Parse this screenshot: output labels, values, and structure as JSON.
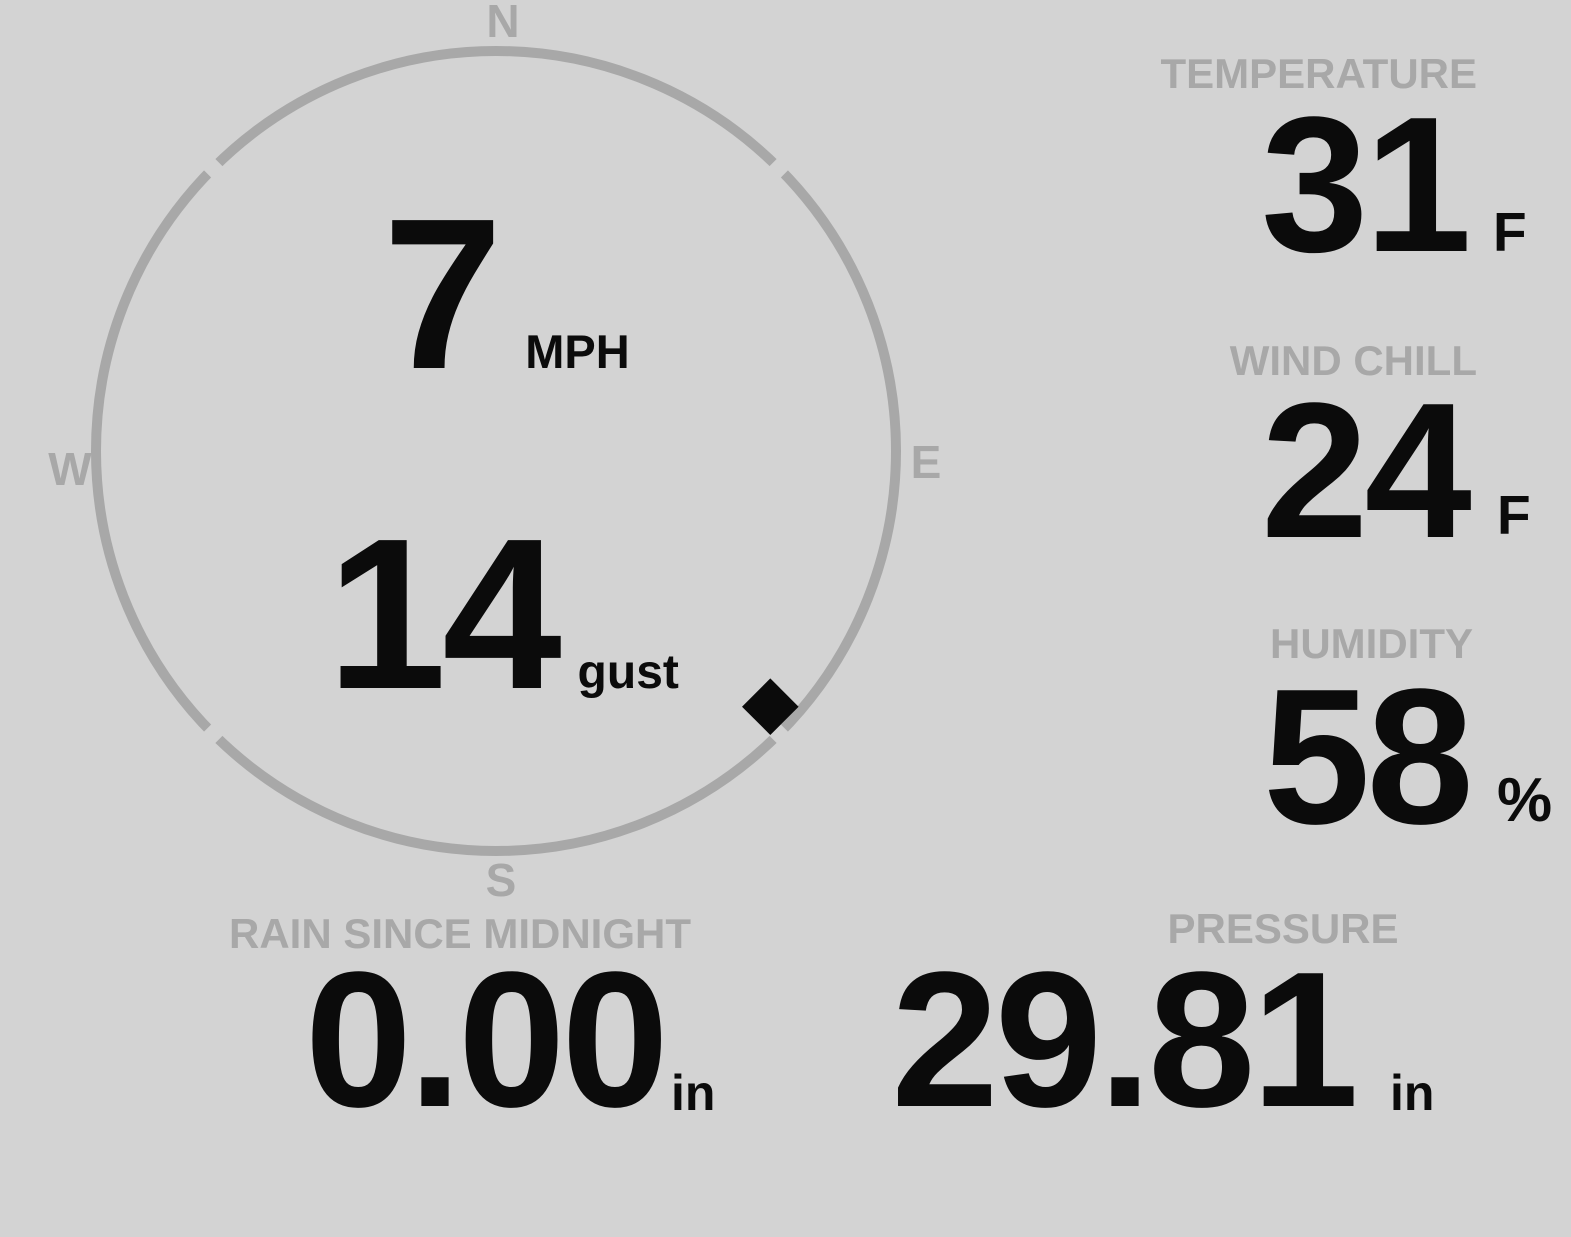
{
  "theme": {
    "background": "#d3d3d3",
    "muted": "#a8a8a8",
    "text": "#0b0b0b"
  },
  "compass": {
    "cardinals": {
      "north": "N",
      "east": "E",
      "south": "S",
      "west": "W"
    },
    "wind_speed": {
      "value": "7",
      "unit": "MPH"
    },
    "wind_gust": {
      "value": "14",
      "unit": "gust"
    },
    "marker_angle_deg": 133
  },
  "metrics": [
    {
      "label": "TEMPERATURE",
      "value": "31",
      "unit": "F"
    },
    {
      "label": "WIND CHILL",
      "value": "24",
      "unit": "F"
    },
    {
      "label": "HUMIDITY",
      "value": "58",
      "unit": "%"
    }
  ],
  "footer_metrics": [
    {
      "label": "RAIN SINCE MIDNIGHT",
      "value": "0.00",
      "unit": "in"
    },
    {
      "label": "PRESSURE",
      "value": "29.81",
      "unit": "in"
    }
  ]
}
